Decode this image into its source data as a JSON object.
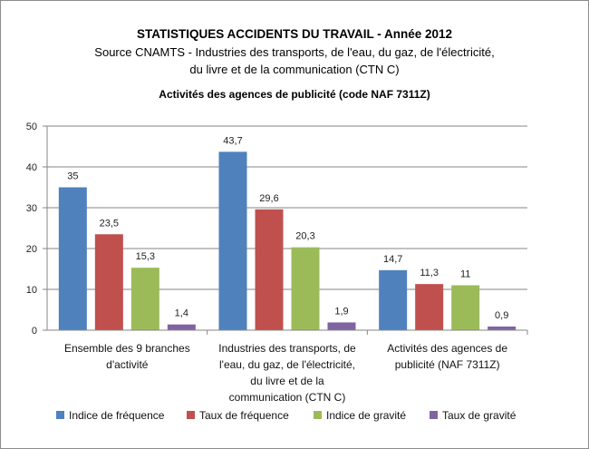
{
  "header": {
    "title": "STATISTIQUES ACCIDENTS DU TRAVAIL - Année 2012",
    "subtitle_lines": [
      "Source  CNAMTS - Industries des transports, de l'eau, du gaz, de l'électricité,",
      "du livre et de la communication  (CTN C)"
    ]
  },
  "chart_data": {
    "type": "bar",
    "title": "Activités des agences de publicité (code NAF 7311Z)",
    "categories": [
      "Ensemble des 9 branches d'activité",
      "Industries des transports, de l'eau, du gaz, de l'électricité, du livre et de la communication (CTN C)",
      "Activités des agences de publicité (NAF 7311Z)"
    ],
    "category_lines": [
      [
        "Ensemble des 9 branches",
        "d'activité"
      ],
      [
        "Industries des transports, de",
        "l'eau, du gaz, de l'électricité,",
        "du livre et de la",
        "communication (CTN C)"
      ],
      [
        "Activités des agences de",
        "publicité (NAF 7311Z)"
      ]
    ],
    "series": [
      {
        "name": "Indice de fréquence",
        "color": "#4f81bd",
        "values": [
          35,
          43.7,
          14.7
        ],
        "labels": [
          "35",
          "43,7",
          "14,7"
        ]
      },
      {
        "name": "Taux de fréquence",
        "color": "#c0504d",
        "values": [
          23.5,
          29.6,
          11.3
        ],
        "labels": [
          "23,5",
          "29,6",
          "11,3"
        ]
      },
      {
        "name": "Indice de gravité",
        "color": "#9bbb59",
        "values": [
          15.3,
          20.3,
          11
        ],
        "labels": [
          "15,3",
          "20,3",
          "11"
        ]
      },
      {
        "name": "Taux de gravité",
        "color": "#8064a2",
        "values": [
          1.4,
          1.9,
          0.9
        ],
        "labels": [
          "1,4",
          "1,9",
          "0,9"
        ]
      }
    ],
    "yticks": [
      0,
      10,
      20,
      30,
      40,
      50
    ],
    "ylim": [
      0,
      50
    ],
    "grid": true,
    "legend_position": "bottom"
  }
}
